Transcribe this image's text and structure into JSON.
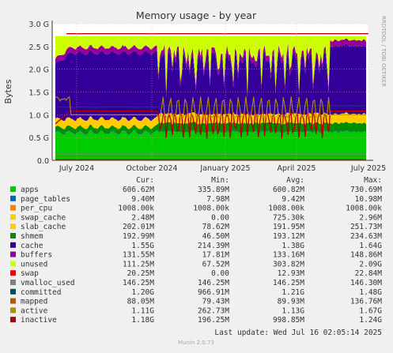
{
  "chart_data": {
    "type": "area",
    "title": "Memory usage - by year",
    "ylabel": "Bytes",
    "side_text": "RRDTOOL / TOBI OETIKER",
    "ylim": [
      0,
      3.0
    ],
    "y_ticks": [
      "0.0",
      "0.5 G",
      "1.0 G",
      "1.5 G",
      "2.0 G",
      "2.5 G",
      "3.0 G"
    ],
    "x_ticks": [
      "July 2024",
      "October 2024",
      "January 2025",
      "April 2025",
      "July 2025"
    ],
    "grid": true,
    "legend_columns": [
      "Cur:",
      "Min:",
      "Avg:",
      "Max:"
    ],
    "series": [
      {
        "name": "apps",
        "color": "#00cc00",
        "cur": "606.62M",
        "min": "335.89M",
        "avg": "600.82M",
        "max": "730.69M"
      },
      {
        "name": "page_tables",
        "color": "#0066b3",
        "cur": "9.40M",
        "min": "7.98M",
        "avg": "9.42M",
        "max": "10.98M"
      },
      {
        "name": "per_cpu",
        "color": "#ff8000",
        "cur": "1008.00k",
        "min": "1008.00k",
        "avg": "1008.00k",
        "max": "1008.00k"
      },
      {
        "name": "swap_cache",
        "color": "#ffcc00",
        "cur": "2.48M",
        "min": "0.00",
        "avg": "725.30k",
        "max": "2.96M"
      },
      {
        "name": "slab_cache",
        "color": "#ffcc00",
        "cur": "202.01M",
        "min": "78.62M",
        "avg": "191.95M",
        "max": "251.73M"
      },
      {
        "name": "shmem",
        "color": "#008f00",
        "cur": "192.99M",
        "min": "46.50M",
        "avg": "193.12M",
        "max": "234.63M"
      },
      {
        "name": "cache",
        "color": "#330099",
        "cur": "1.55G",
        "min": "214.39M",
        "avg": "1.38G",
        "max": "1.64G"
      },
      {
        "name": "buffers",
        "color": "#990099",
        "cur": "131.55M",
        "min": "17.81M",
        "avg": "133.16M",
        "max": "148.86M"
      },
      {
        "name": "unused",
        "color": "#ccff00",
        "cur": "111.25M",
        "min": "67.52M",
        "avg": "303.82M",
        "max": "2.09G"
      },
      {
        "name": "swap",
        "color": "#ff0000",
        "cur": "20.25M",
        "min": "0.00",
        "avg": "12.93M",
        "max": "22.84M"
      },
      {
        "name": "vmalloc_used",
        "color": "#808080",
        "cur": "146.25M",
        "min": "146.25M",
        "avg": "146.25M",
        "max": "146.30M"
      },
      {
        "name": "committed",
        "color": "#004d66",
        "cur": "1.20G",
        "min": "966.91M",
        "avg": "1.21G",
        "max": "1.48G"
      },
      {
        "name": "mapped",
        "color": "#b35a00",
        "cur": "88.05M",
        "min": "79.43M",
        "avg": "89.93M",
        "max": "136.76M"
      },
      {
        "name": "active",
        "color": "#b38f00",
        "cur": "1.11G",
        "min": "262.73M",
        "avg": "1.13G",
        "max": "1.67G"
      },
      {
        "name": "inactive",
        "color": "#b30000",
        "cur": "1.18G",
        "min": "196.25M",
        "avg": "998.85M",
        "max": "1.24G"
      }
    ],
    "last_update": "Last update:  Wed Jul 16 02:05:14 2025",
    "footer": "Munin 2.0.73"
  }
}
